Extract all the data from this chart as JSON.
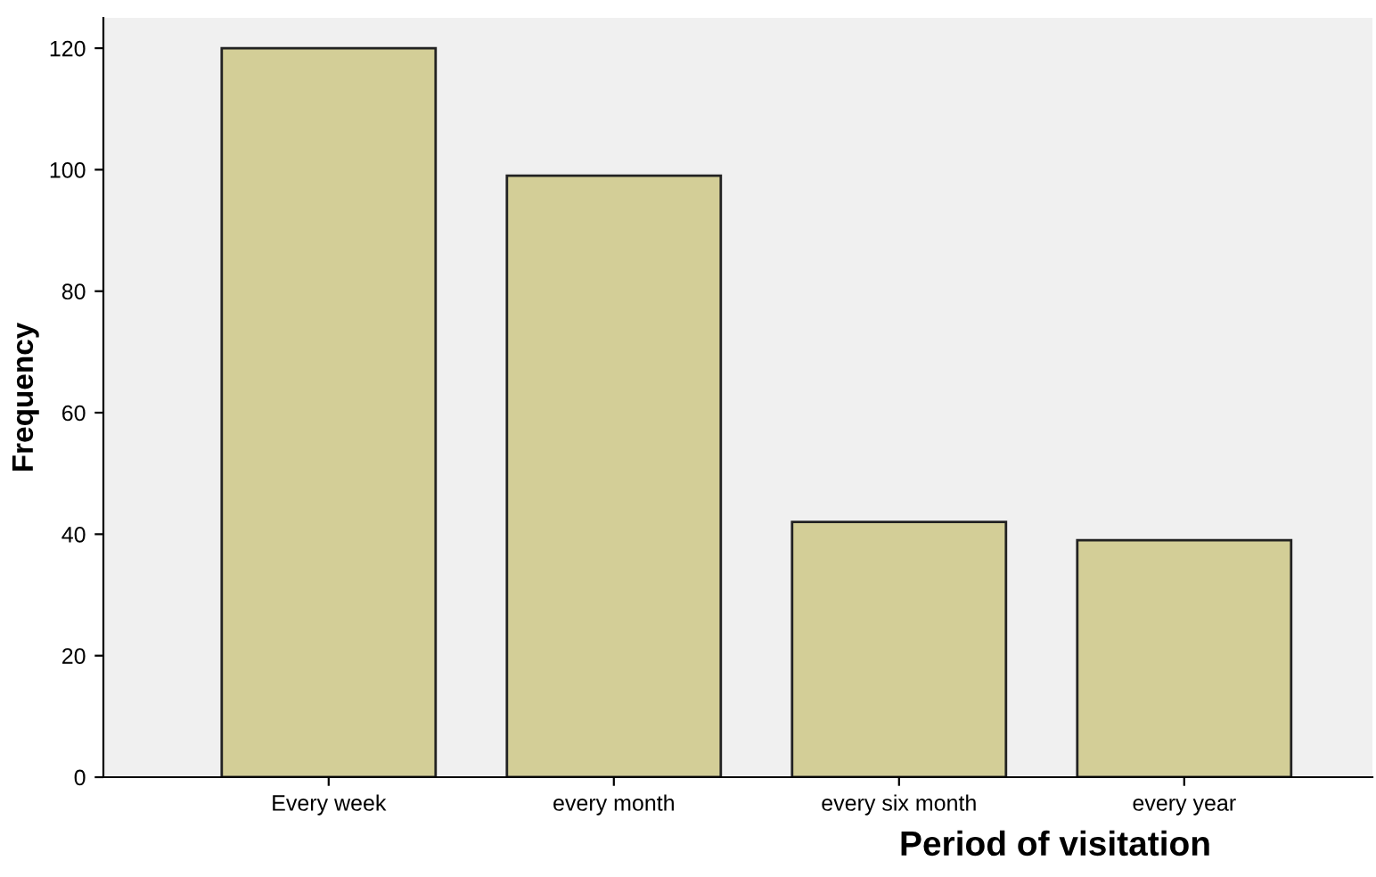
{
  "chart_data": {
    "type": "bar",
    "xlabel": "Period of visitation",
    "ylabel": "Frequency",
    "categories": [
      "Every week",
      "every month",
      "every six month",
      "every year"
    ],
    "values": [
      120,
      99,
      42,
      39
    ],
    "color": "#d3ce97",
    "ylim": [
      0,
      125
    ],
    "yticks": [
      0,
      20,
      40,
      60,
      80,
      100,
      120
    ],
    "grid": false
  }
}
